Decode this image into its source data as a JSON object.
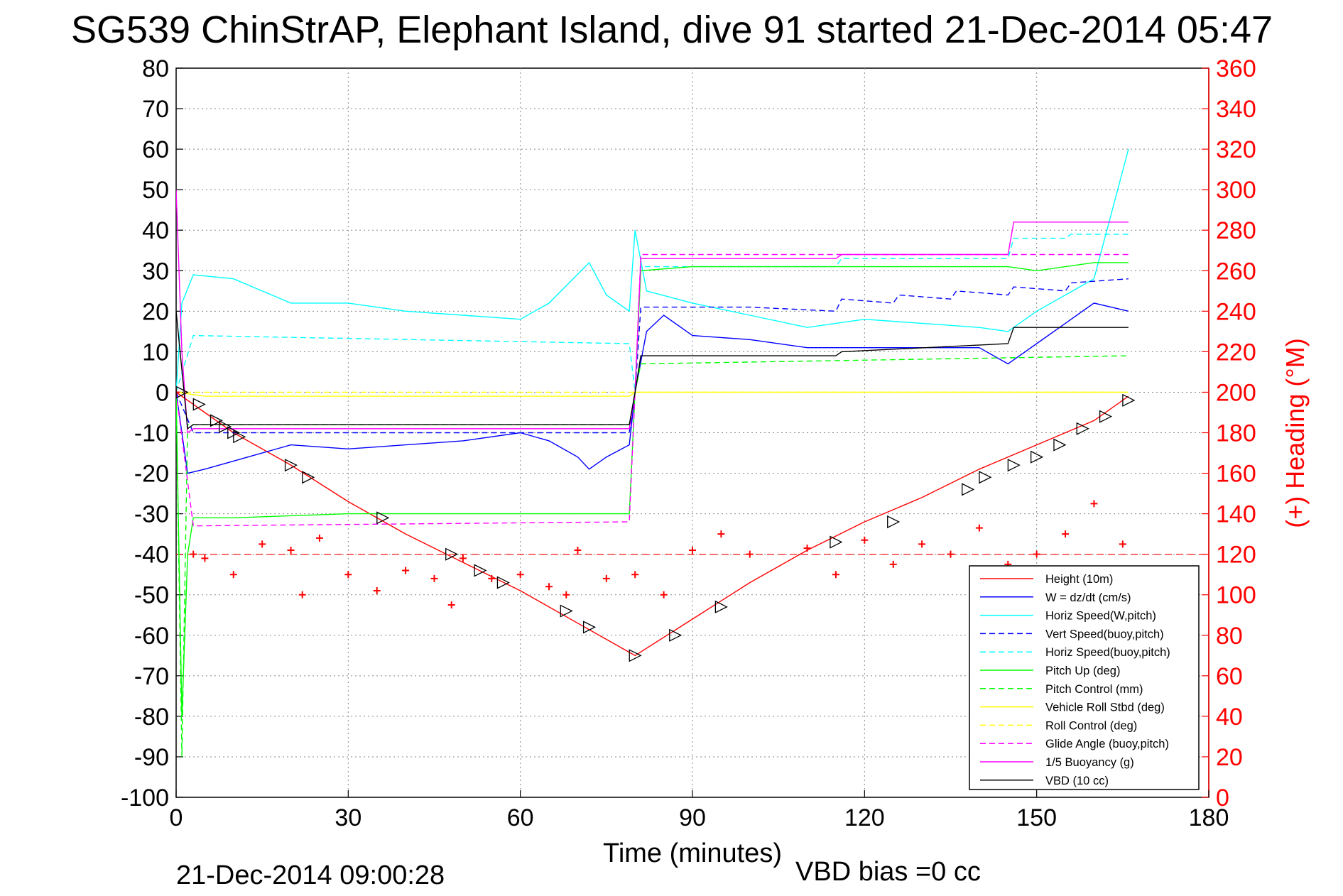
{
  "chart_data": {
    "type": "line",
    "title": "SG539 ChinStrAP, Elephant Island, dive 91 started 21-Dec-2014 05:47",
    "xlabel": "Time (minutes)",
    "ylabel_right": "(+) Heading (°M)",
    "footer_left": "21-Dec-2014 09:00:28",
    "footer_right": "VBD bias =0 cc",
    "xlim": [
      0,
      180
    ],
    "ylim": [
      -100,
      80
    ],
    "ylim_right": [
      0,
      360
    ],
    "x_ticks": [
      "0",
      "30",
      "60",
      "90",
      "120",
      "150",
      "180"
    ],
    "y_ticks": [
      "80",
      "70",
      "60",
      "50",
      "40",
      "30",
      "20",
      "10",
      "0",
      "-10",
      "-20",
      "-30",
      "-40",
      "-50",
      "-60",
      "-70",
      "-80",
      "-90",
      "-100"
    ],
    "y_ticks_right": [
      "360",
      "340",
      "320",
      "300",
      "280",
      "260",
      "240",
      "220",
      "200",
      "180",
      "160",
      "140",
      "120",
      "100",
      "80",
      "60",
      "40",
      "20",
      "0"
    ],
    "grid": true,
    "legend_position": "bottom-right",
    "series": [
      {
        "name": "Height (10m)",
        "color": "#ff0000",
        "style": "solid",
        "x": [
          0,
          5,
          10,
          20,
          30,
          40,
          50,
          60,
          70,
          80,
          90,
          100,
          110,
          120,
          130,
          140,
          150,
          160,
          166
        ],
        "y": [
          0,
          -5,
          -10,
          -18,
          -27,
          -35,
          -42,
          -49,
          -57,
          -65,
          -56,
          -47,
          -39,
          -32,
          -26,
          -19,
          -13,
          -7,
          -1
        ]
      },
      {
        "name": "W = dz/dt (cm/s)",
        "color": "#0000ff",
        "style": "solid",
        "x": [
          0,
          2,
          5,
          10,
          20,
          30,
          40,
          50,
          60,
          65,
          70,
          72,
          75,
          79,
          80,
          82,
          85,
          90,
          100,
          110,
          120,
          130,
          140,
          145,
          150,
          155,
          160,
          166
        ],
        "y": [
          0,
          -20,
          -19,
          -17,
          -13,
          -14,
          -13,
          -12,
          -10,
          -12,
          -16,
          -19,
          -16,
          -13,
          0,
          15,
          19,
          14,
          13,
          11,
          11,
          11,
          11,
          7,
          12,
          17,
          22,
          20
        ]
      },
      {
        "name": "Horiz Speed(W,pitch)",
        "color": "#00ffff",
        "style": "solid",
        "x": [
          0,
          1,
          3,
          10,
          20,
          30,
          40,
          50,
          60,
          65,
          72,
          75,
          79,
          80,
          82,
          90,
          100,
          110,
          120,
          130,
          140,
          145,
          150,
          160,
          166
        ],
        "y": [
          0,
          22,
          29,
          28,
          22,
          22,
          20,
          19,
          18,
          22,
          32,
          24,
          20,
          40,
          25,
          22,
          19,
          16,
          18,
          17,
          16,
          15,
          20,
          28,
          60
        ]
      },
      {
        "name": "Vert Speed(buoy,pitch)",
        "color": "#0000ff",
        "style": "dashed",
        "x": [
          0,
          3,
          79,
          80,
          81,
          100,
          115,
          116,
          125,
          126,
          135,
          136,
          145,
          146,
          155,
          156,
          166
        ],
        "y": [
          0,
          -10,
          -10,
          0,
          21,
          21,
          20,
          23,
          22,
          24,
          23,
          25,
          24,
          26,
          25,
          27,
          28
        ]
      },
      {
        "name": "Horiz Speed(buoy,pitch)",
        "color": "#00ffff",
        "style": "dashed",
        "x": [
          0,
          3,
          79,
          80,
          81,
          115,
          116,
          145,
          146,
          155,
          156,
          166
        ],
        "y": [
          0,
          14,
          12,
          0,
          31,
          31,
          33,
          33,
          38,
          38,
          39,
          39
        ]
      },
      {
        "name": "Pitch Up (deg)",
        "color": "#00ff00",
        "style": "solid",
        "x": [
          0,
          1,
          2,
          3,
          10,
          30,
          50,
          79,
          80,
          81,
          90,
          110,
          120,
          140,
          145,
          150,
          160,
          166
        ],
        "y": [
          0,
          -80,
          -40,
          -31,
          -31,
          -30,
          -30,
          -30,
          0,
          30,
          31,
          31,
          31,
          31,
          31,
          30,
          32,
          32
        ]
      },
      {
        "name": "Pitch Control (mm)",
        "color": "#00ff00",
        "style": "dashed",
        "x": [
          0,
          1,
          2,
          3,
          79,
          80,
          81,
          166
        ],
        "y": [
          0,
          -90,
          -8,
          -8,
          -8,
          0,
          7,
          9
        ]
      },
      {
        "name": "Vehicle Roll Stbd (deg)",
        "color": "#ffff00",
        "style": "solid",
        "x": [
          0,
          5,
          30,
          60,
          79,
          80,
          100,
          130,
          166
        ],
        "y": [
          0,
          -1,
          -1,
          -1,
          -1,
          0,
          0,
          0,
          0
        ]
      },
      {
        "name": "Roll Control (deg)",
        "color": "#ffff00",
        "style": "dashed",
        "x": [
          0,
          166
        ],
        "y": [
          0,
          0
        ]
      },
      {
        "name": "Glide Angle (buoy,pitch)",
        "color": "#ff00ff",
        "style": "dashed",
        "x": [
          0,
          3,
          79,
          80,
          81,
          166
        ],
        "y": [
          0,
          -33,
          -32,
          0,
          34,
          34
        ]
      },
      {
        "name": "1/5 Buoyancy (g)",
        "color": "#ff00ff",
        "style": "solid",
        "x": [
          0,
          1,
          2,
          3,
          79,
          80,
          81,
          115,
          116,
          145,
          146,
          166
        ],
        "y": [
          50,
          10,
          -10,
          -9,
          -9,
          0,
          33,
          33,
          34,
          34,
          42,
          42
        ]
      },
      {
        "name": "VBD (10 cc)",
        "color": "#000000",
        "style": "solid",
        "x": [
          0,
          2,
          3,
          79,
          80,
          81,
          100,
          115,
          116,
          145,
          146,
          166
        ],
        "y": [
          20,
          -9,
          -8,
          -8,
          0,
          9,
          9,
          9,
          10,
          12,
          16,
          16
        ]
      }
    ],
    "heading": {
      "name": "Heading",
      "axis": "right",
      "color": "#ff0000",
      "marker": "+",
      "x": [
        0,
        3,
        5,
        10,
        15,
        20,
        22,
        25,
        30,
        35,
        40,
        45,
        48,
        50,
        55,
        60,
        65,
        68,
        70,
        75,
        80,
        85,
        90,
        95,
        100,
        110,
        115,
        120,
        125,
        130,
        135,
        140,
        145,
        150,
        155,
        160,
        165
      ],
      "y": [
        200,
        120,
        118,
        110,
        125,
        122,
        100,
        128,
        110,
        102,
        112,
        108,
        95,
        118,
        108,
        110,
        104,
        100,
        122,
        108,
        110,
        100,
        122,
        130,
        120,
        123,
        110,
        127,
        115,
        125,
        120,
        133,
        115,
        120,
        130,
        145,
        125
      ]
    },
    "heading_reference": {
      "value": 120,
      "axis": "right",
      "color": "#ff0000",
      "style": "dashed"
    },
    "glider_markers": {
      "x": [
        1,
        4,
        7,
        8.5,
        10,
        11,
        20,
        23,
        36,
        48,
        53,
        57,
        68,
        72,
        80,
        87,
        95,
        115,
        125,
        138,
        141,
        146,
        150,
        154,
        158,
        162,
        166
      ],
      "y": [
        0,
        -3,
        -7,
        -8.5,
        -10,
        -11,
        -18,
        -21,
        -31,
        -40,
        -44,
        -47,
        -54,
        -58,
        -65,
        -60,
        -53,
        -37,
        -32,
        -24,
        -21,
        -18,
        -16,
        -13,
        -9,
        -6,
        -2
      ]
    }
  }
}
